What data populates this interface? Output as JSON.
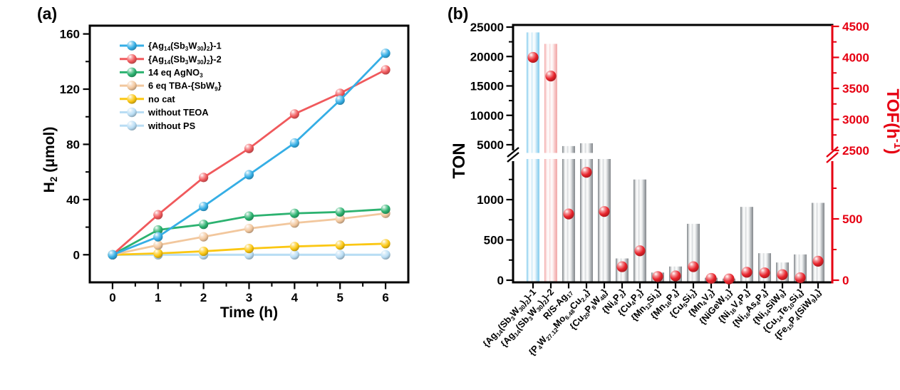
{
  "figure": {
    "panel_a_tag": "(a)",
    "panel_b_tag": "(b)"
  },
  "colors": {
    "spine_black": "#000000",
    "right_axis_red": "#E60012",
    "dot_red": "#E8232B",
    "bar_blue_base": "#A9DAF3",
    "bar_pink_base": "#F6ACAC",
    "bar_gray_base": "#B6BABD",
    "background": "#FFFFFF"
  },
  "chart_data": [
    {
      "type": "line",
      "panel": "a",
      "xlabel": "Time (h)",
      "ylabel": "H~2~ (μmol)",
      "xlim": [
        -0.5,
        6.5
      ],
      "ylim": [
        -20,
        166
      ],
      "xticks": [
        0,
        1,
        2,
        3,
        4,
        5,
        6
      ],
      "yticks": [
        0,
        40,
        80,
        120,
        160
      ],
      "x_minor_step": 0.5,
      "y_minor_step": 20,
      "grid": false,
      "legend_position": "upper-left-inside",
      "x": [
        0,
        1,
        2,
        3,
        4,
        5,
        6
      ],
      "series": [
        {
          "name": "{Ag~14~(Sb~3~W~30~)~2~}-1",
          "color": "#35AEE5",
          "values": [
            0,
            13,
            35,
            58,
            81,
            112,
            146
          ]
        },
        {
          "name": "{Ag~14~(Sb~3~W~30~)~2~}-2",
          "color": "#F0595C",
          "values": [
            0,
            29,
            56,
            77,
            102,
            117,
            134
          ]
        },
        {
          "name": "14 eq AgNO~3~",
          "color": "#2CB270",
          "values": [
            0,
            18,
            22,
            28,
            30,
            31,
            33
          ]
        },
        {
          "name": "6 eq TBA-{SbW~9~}",
          "color": "#F2C79D",
          "values": [
            0,
            7,
            13,
            19,
            23,
            26,
            30
          ]
        },
        {
          "name": "no cat",
          "color": "#FBC713",
          "values": [
            0,
            1,
            2.5,
            4.5,
            6,
            7,
            8
          ]
        },
        {
          "name": "without TEOA",
          "color": "#B9DDF4",
          "values": [
            0,
            0,
            0,
            0,
            0,
            0,
            0
          ]
        },
        {
          "name": "without PS",
          "color": "#B9DDF4",
          "values": [
            0,
            0,
            0,
            0,
            0,
            0,
            0
          ]
        }
      ]
    },
    {
      "type": "bar",
      "panel": "b",
      "ylabel_left": "TON",
      "ylabel_right": "TOF(h^-1^)",
      "axis_break_left_range": [
        1450,
        5000
      ],
      "axis_break_right_range": [
        1000,
        2500
      ],
      "left_ticks": {
        "lower": [
          0,
          500,
          1000
        ],
        "lower_minor": [
          250,
          750,
          1250
        ],
        "upper": [
          5000,
          10000,
          15000,
          20000,
          25000
        ],
        "upper_minor": [
          7500,
          12500,
          17500,
          22500
        ]
      },
      "right_ticks": {
        "lower": [
          0,
          500
        ],
        "lower_minor": [
          250,
          750
        ],
        "upper": [
          2500,
          3000,
          3500,
          4000,
          4500
        ],
        "upper_minor": [
          2750,
          3250,
          3750,
          4250
        ]
      },
      "categories": [
        "{Ag~14~(Sb~3~W~30~)~2~}-1",
        "{Ag~14~(Sb~3~W~30~)~2~}-2",
        "R/S-Ag~17~",
        "{P~4~W~27.12~Mo~6.48~Cu~2.4~}",
        "{Cu~20~P~8~W~48~}",
        "{Ni~4~P~2~}",
        "{Cu~4~P~2~}",
        "{Mn~12~Si~4~}",
        "{Mn~16~P~4~}",
        "{Cu~5~Si~2~}",
        "{Mn~4~V~2~}",
        "{NiGeW~11~}",
        "{Ni~16~V~4~P~4~}",
        "{Ni~16~As~4~P~4~}",
        "{Ni~14~SiW~9~}",
        "{Cu~14~Te~10~Si~4~}",
        "{Fe~15~P~4~(SiW~9~)~4~}"
      ],
      "series": [
        {
          "name": "TON",
          "axis": "left",
          "values": [
            24100,
            22150,
            4650,
            5250,
            1500,
            270,
            1250,
            95,
            170,
            700,
            30,
            20,
            910,
            335,
            220,
            320,
            960
          ]
        },
        {
          "name": "TOF",
          "axis": "right",
          "values": [
            4000,
            3700,
            540,
            880,
            560,
            110,
            240,
            30,
            35,
            110,
            15,
            10,
            65,
            60,
            45,
            20,
            155
          ]
        }
      ],
      "bar_styles": [
        "blue",
        "pink",
        "gray",
        "gray",
        "gray",
        "gray",
        "gray",
        "gray",
        "gray",
        "gray",
        "gray",
        "gray",
        "gray",
        "gray",
        "gray",
        "gray",
        "gray"
      ]
    }
  ]
}
